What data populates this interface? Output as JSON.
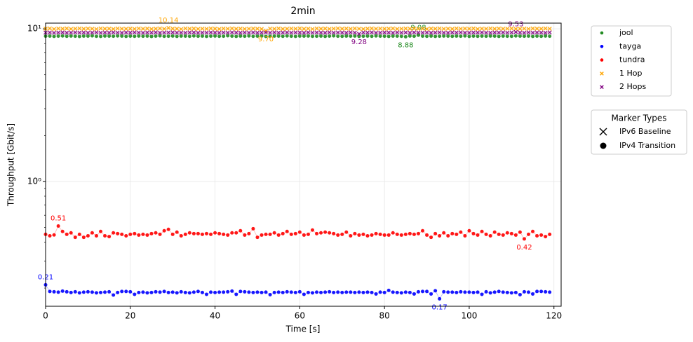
{
  "chart_data": {
    "type": "scatter",
    "title": "2min",
    "xlabel": "Time [s]",
    "ylabel": "Throughput [Gbit/s]",
    "x": [
      0,
      1,
      2,
      3,
      4,
      5,
      6,
      7,
      8,
      9,
      10,
      11,
      12,
      13,
      14,
      15,
      16,
      17,
      18,
      19,
      20,
      21,
      22,
      23,
      24,
      25,
      26,
      27,
      28,
      29,
      30,
      31,
      32,
      33,
      34,
      35,
      36,
      37,
      38,
      39,
      40,
      41,
      42,
      43,
      44,
      45,
      46,
      47,
      48,
      49,
      50,
      51,
      52,
      53,
      54,
      55,
      56,
      57,
      58,
      59,
      60,
      61,
      62,
      63,
      64,
      65,
      66,
      67,
      68,
      69,
      70,
      71,
      72,
      73,
      74,
      75,
      76,
      77,
      78,
      79,
      80,
      81,
      82,
      83,
      84,
      85,
      86,
      87,
      88,
      89,
      90,
      91,
      92,
      93,
      94,
      95,
      96,
      97,
      98,
      99,
      100,
      101,
      102,
      103,
      104,
      105,
      106,
      107,
      108,
      109,
      110,
      111,
      112,
      113,
      114,
      115,
      116,
      117,
      118,
      119
    ],
    "xlim": [
      0,
      121.7
    ],
    "xticks": [
      0,
      20,
      40,
      60,
      80,
      100,
      120
    ],
    "ylim": [
      0.152,
      10.9
    ],
    "log_y": true,
    "grid": true,
    "yticks": [
      {
        "value": 1,
        "label": "10⁰"
      },
      {
        "value": 10,
        "label": "10¹"
      }
    ],
    "yminor": [
      0.2,
      0.3,
      0.4,
      0.5,
      0.6,
      0.7,
      0.8,
      0.9,
      2,
      3,
      4,
      5,
      6,
      7,
      8,
      9
    ],
    "legend_position": "outside-right",
    "series": [
      {
        "name": "jool",
        "color": "#228b22",
        "marker": "circle",
        "annotations": [
          {
            "x": 88,
            "label": "9.08"
          },
          {
            "x": 85,
            "label": "8.88"
          }
        ],
        "values": [
          8.95,
          8.97,
          8.93,
          8.96,
          8.99,
          8.94,
          8.98,
          8.95,
          8.92,
          8.97,
          8.96,
          9.0,
          8.94,
          8.93,
          8.98,
          8.96,
          8.95,
          8.99,
          8.97,
          8.93,
          8.96,
          8.94,
          8.98,
          8.95,
          8.97,
          8.92,
          8.96,
          9.0,
          8.94,
          8.95,
          8.98,
          8.93,
          8.97,
          8.96,
          8.94,
          8.99,
          8.95,
          8.97,
          8.93,
          8.96,
          8.98,
          8.94,
          8.95,
          9.01,
          8.96,
          8.93,
          8.97,
          8.95,
          8.99,
          8.94,
          8.96,
          8.98,
          8.92,
          8.95,
          8.97,
          8.96,
          8.94,
          8.99,
          8.95,
          8.93,
          8.97,
          8.96,
          8.98,
          8.94,
          8.95,
          8.97,
          8.93,
          8.96,
          9.0,
          8.95,
          8.94,
          8.97,
          8.96,
          8.98,
          8.93,
          8.95,
          8.97,
          8.94,
          8.99,
          8.96,
          8.95,
          8.93,
          8.97,
          8.96,
          8.94,
          8.88,
          8.98,
          8.95,
          9.08,
          8.96,
          8.94,
          8.97,
          8.93,
          8.95,
          8.98,
          8.96,
          8.94,
          8.97,
          8.95,
          8.99,
          8.93,
          8.96,
          8.94,
          8.97,
          8.95,
          8.98,
          8.96,
          8.93,
          8.97,
          8.95,
          8.94,
          8.99,
          8.96,
          8.95,
          8.97,
          8.93,
          8.96,
          8.94,
          8.98,
          8.95
        ]
      },
      {
        "name": "tayga",
        "color": "#0000ff",
        "marker": "circle",
        "annotations": [
          {
            "x": 0,
            "label": "0.21"
          },
          {
            "x": 93,
            "label": "0.17"
          }
        ],
        "values": [
          0.21,
          0.19,
          0.189,
          0.188,
          0.191,
          0.189,
          0.187,
          0.189,
          0.186,
          0.188,
          0.189,
          0.188,
          0.186,
          0.187,
          0.188,
          0.189,
          0.18,
          0.187,
          0.19,
          0.19,
          0.189,
          0.182,
          0.187,
          0.188,
          0.186,
          0.187,
          0.189,
          0.188,
          0.19,
          0.187,
          0.188,
          0.186,
          0.189,
          0.187,
          0.186,
          0.188,
          0.19,
          0.187,
          0.182,
          0.188,
          0.187,
          0.188,
          0.188,
          0.189,
          0.191,
          0.182,
          0.19,
          0.189,
          0.188,
          0.187,
          0.188,
          0.187,
          0.188,
          0.181,
          0.187,
          0.188,
          0.187,
          0.189,
          0.188,
          0.187,
          0.189,
          0.182,
          0.187,
          0.186,
          0.188,
          0.187,
          0.188,
          0.189,
          0.187,
          0.188,
          0.187,
          0.188,
          0.188,
          0.187,
          0.188,
          0.187,
          0.188,
          0.187,
          0.183,
          0.188,
          0.187,
          0.193,
          0.188,
          0.187,
          0.186,
          0.188,
          0.187,
          0.183,
          0.189,
          0.19,
          0.19,
          0.183,
          0.192,
          0.17,
          0.189,
          0.188,
          0.188,
          0.187,
          0.189,
          0.188,
          0.188,
          0.187,
          0.188,
          0.182,
          0.189,
          0.186,
          0.188,
          0.19,
          0.188,
          0.187,
          0.186,
          0.187,
          0.181,
          0.189,
          0.188,
          0.183,
          0.19,
          0.19,
          0.189,
          0.188
        ]
      },
      {
        "name": "tundra",
        "color": "#ff0000",
        "marker": "circle",
        "annotations": [
          {
            "x": 3,
            "label": "0.51"
          },
          {
            "x": 113,
            "label": "0.42"
          }
        ],
        "values": [
          0.45,
          0.44,
          0.446,
          0.51,
          0.47,
          0.45,
          0.46,
          0.43,
          0.45,
          0.43,
          0.44,
          0.46,
          0.44,
          0.47,
          0.44,
          0.435,
          0.46,
          0.455,
          0.45,
          0.44,
          0.45,
          0.455,
          0.445,
          0.45,
          0.445,
          0.455,
          0.46,
          0.45,
          0.475,
          0.485,
          0.45,
          0.465,
          0.44,
          0.45,
          0.46,
          0.455,
          0.455,
          0.45,
          0.455,
          0.45,
          0.46,
          0.455,
          0.45,
          0.445,
          0.46,
          0.46,
          0.475,
          0.445,
          0.455,
          0.49,
          0.43,
          0.445,
          0.45,
          0.45,
          0.46,
          0.445,
          0.455,
          0.47,
          0.45,
          0.455,
          0.465,
          0.445,
          0.45,
          0.48,
          0.455,
          0.46,
          0.465,
          0.46,
          0.455,
          0.445,
          0.45,
          0.465,
          0.44,
          0.455,
          0.445,
          0.45,
          0.44,
          0.445,
          0.455,
          0.45,
          0.445,
          0.445,
          0.46,
          0.45,
          0.445,
          0.45,
          0.455,
          0.45,
          0.455,
          0.475,
          0.445,
          0.43,
          0.455,
          0.44,
          0.46,
          0.44,
          0.455,
          0.45,
          0.465,
          0.44,
          0.475,
          0.455,
          0.445,
          0.47,
          0.45,
          0.44,
          0.465,
          0.45,
          0.445,
          0.46,
          0.455,
          0.445,
          0.465,
          0.42,
          0.45,
          0.47,
          0.44,
          0.445,
          0.435,
          0.45
        ]
      },
      {
        "name": "1 Hop",
        "color": "#ffa500",
        "marker": "x",
        "annotations": [
          {
            "x": 29,
            "label": "10.14"
          },
          {
            "x": 52,
            "label": "9.70"
          }
        ],
        "values": [
          10.02,
          10.05,
          9.98,
          10.04,
          10.01,
          10.06,
          9.99,
          10.03,
          10.05,
          10.0,
          10.04,
          10.02,
          9.97,
          10.05,
          10.01,
          10.03,
          9.98,
          10.06,
          10.02,
          10.0,
          10.03,
          9.99,
          10.05,
          10.01,
          10.04,
          9.98,
          10.02,
          10.06,
          10.0,
          10.14,
          10.03,
          10.01,
          9.97,
          10.05,
          10.02,
          10.04,
          9.99,
          10.03,
          10.0,
          10.06,
          10.02,
          9.98,
          10.04,
          10.01,
          10.05,
          10.0,
          10.03,
          9.99,
          10.02,
          10.04,
          10.01,
          9.98,
          9.7,
          10.03,
          10.0,
          10.05,
          9.99,
          10.02,
          10.04,
          10.01,
          10.06,
          10.0,
          10.03,
          9.98,
          10.05,
          10.02,
          10.04,
          9.99,
          10.03,
          10.07,
          10.01,
          10.04,
          10.0,
          10.05,
          10.02,
          9.98,
          10.03,
          10.06,
          10.01,
          10.04,
          10.0,
          10.03,
          10.05,
          9.99,
          10.02,
          10.04,
          10.01,
          10.06,
          10.0,
          10.03,
          9.98,
          10.04,
          10.02,
          10.05,
          10.0,
          10.03,
          9.99,
          10.06,
          10.02,
          10.04,
          10.01,
          10.05,
          9.98,
          10.03,
          10.02,
          10.06,
          10.0,
          10.04,
          10.01,
          10.03,
          10.05,
          9.99,
          10.02,
          10.04,
          10.0,
          10.06,
          10.03,
          10.01,
          10.05,
          10.02
        ]
      },
      {
        "name": "2 Hops",
        "color": "#800080",
        "marker": "x",
        "annotations": [
          {
            "x": 111,
            "label": "9.53"
          },
          {
            "x": 74,
            "label": "9.28"
          }
        ],
        "values": [
          9.44,
          9.46,
          9.42,
          9.45,
          9.47,
          9.43,
          9.45,
          9.48,
          9.44,
          9.46,
          9.43,
          9.45,
          9.47,
          9.42,
          9.46,
          9.44,
          9.48,
          9.45,
          9.43,
          9.46,
          9.44,
          9.47,
          9.45,
          9.42,
          9.46,
          9.44,
          9.48,
          9.43,
          9.45,
          9.46,
          9.47,
          9.44,
          9.45,
          9.42,
          9.46,
          9.48,
          9.43,
          9.45,
          9.44,
          9.47,
          9.45,
          9.43,
          9.46,
          9.44,
          9.48,
          9.45,
          9.42,
          9.46,
          9.44,
          9.47,
          9.43,
          9.45,
          9.46,
          9.44,
          9.48,
          9.42,
          9.45,
          9.47,
          9.44,
          9.46,
          9.45,
          9.43,
          9.47,
          9.44,
          9.46,
          9.45,
          9.42,
          9.48,
          9.44,
          9.46,
          9.45,
          9.43,
          9.47,
          9.44,
          9.28,
          9.46,
          9.45,
          9.48,
          9.43,
          9.44,
          9.46,
          9.45,
          9.42,
          9.47,
          9.44,
          9.46,
          9.43,
          9.48,
          9.45,
          9.44,
          9.46,
          9.43,
          9.45,
          9.47,
          9.44,
          9.42,
          9.46,
          9.45,
          9.48,
          9.44,
          9.43,
          9.46,
          9.45,
          9.47,
          9.44,
          9.42,
          9.46,
          9.45,
          9.48,
          9.44,
          9.46,
          9.53,
          9.45,
          9.43,
          9.47,
          9.44,
          9.46,
          9.45,
          9.42,
          9.47
        ]
      }
    ],
    "marker_legend": {
      "title": "Marker Types",
      "entries": [
        {
          "label": "IPv6 Baseline",
          "marker": "x"
        },
        {
          "label": "IPv4 Transition",
          "marker": "circle"
        }
      ]
    }
  }
}
